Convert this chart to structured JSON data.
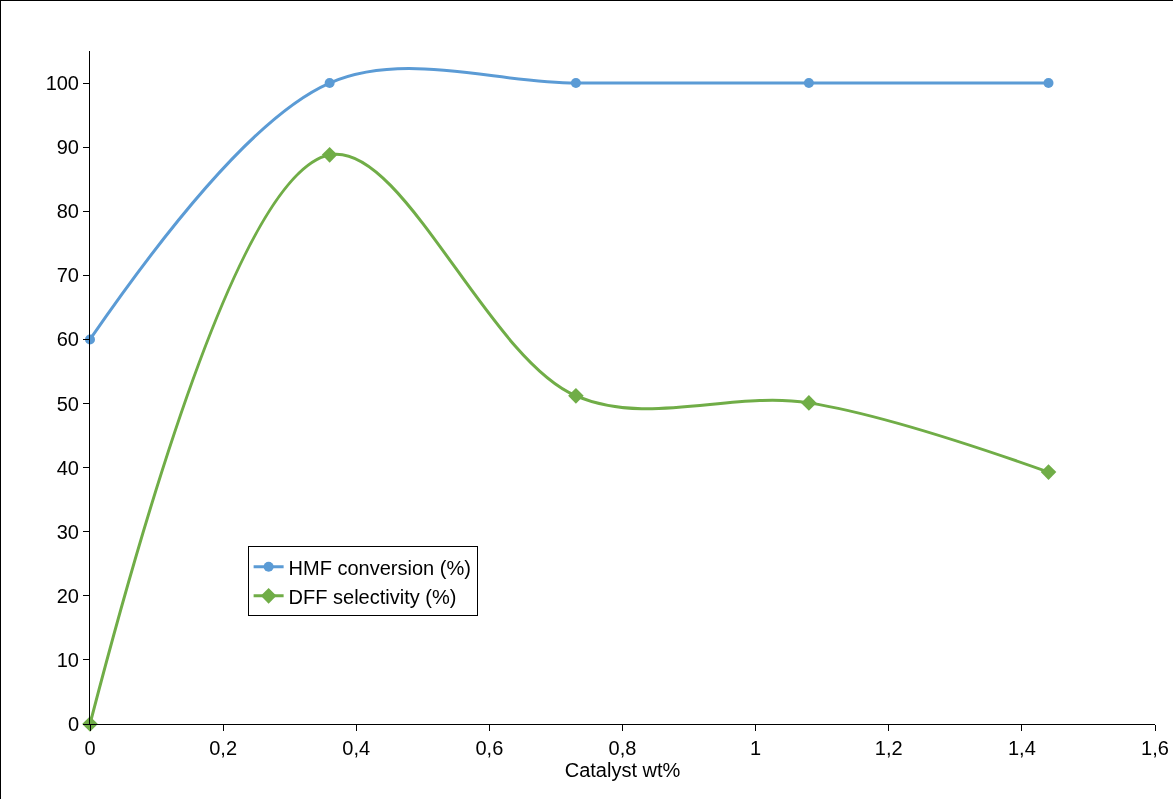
{
  "chart_data": {
    "type": "line",
    "xlabel": "Catalyst wt%",
    "x": [
      0,
      0.36,
      0.73,
      1.08,
      1.44
    ],
    "series": [
      {
        "name": "HMF conversion (%)",
        "color": "#5b9bd5",
        "marker": "circle",
        "values": [
          60,
          100,
          100,
          100,
          100
        ]
      },
      {
        "name": "DFF selectivity (%)",
        "color": "#70ad47",
        "marker": "diamond",
        "values": [
          0,
          88.8,
          51.2,
          50.1,
          39.3
        ]
      }
    ],
    "xlim": [
      0,
      1.6
    ],
    "xticks": [
      0,
      {
        "value": 0.2,
        "label": "0,2"
      },
      {
        "value": 0.4,
        "label": "0,4"
      },
      {
        "value": 0.6,
        "label": "0,6"
      },
      {
        "value": 0.8,
        "label": "0,8"
      },
      1,
      {
        "value": 1.2,
        "label": "1,2"
      },
      {
        "value": 1.4,
        "label": "1,4"
      },
      {
        "value": 1.6,
        "label": "1,6"
      }
    ],
    "ylim": [
      0,
      105
    ],
    "yticks": [
      0,
      10,
      20,
      30,
      40,
      50,
      60,
      70,
      80,
      90,
      100
    ],
    "grid": false,
    "legend": "bottom left",
    "line_style": "solid"
  }
}
